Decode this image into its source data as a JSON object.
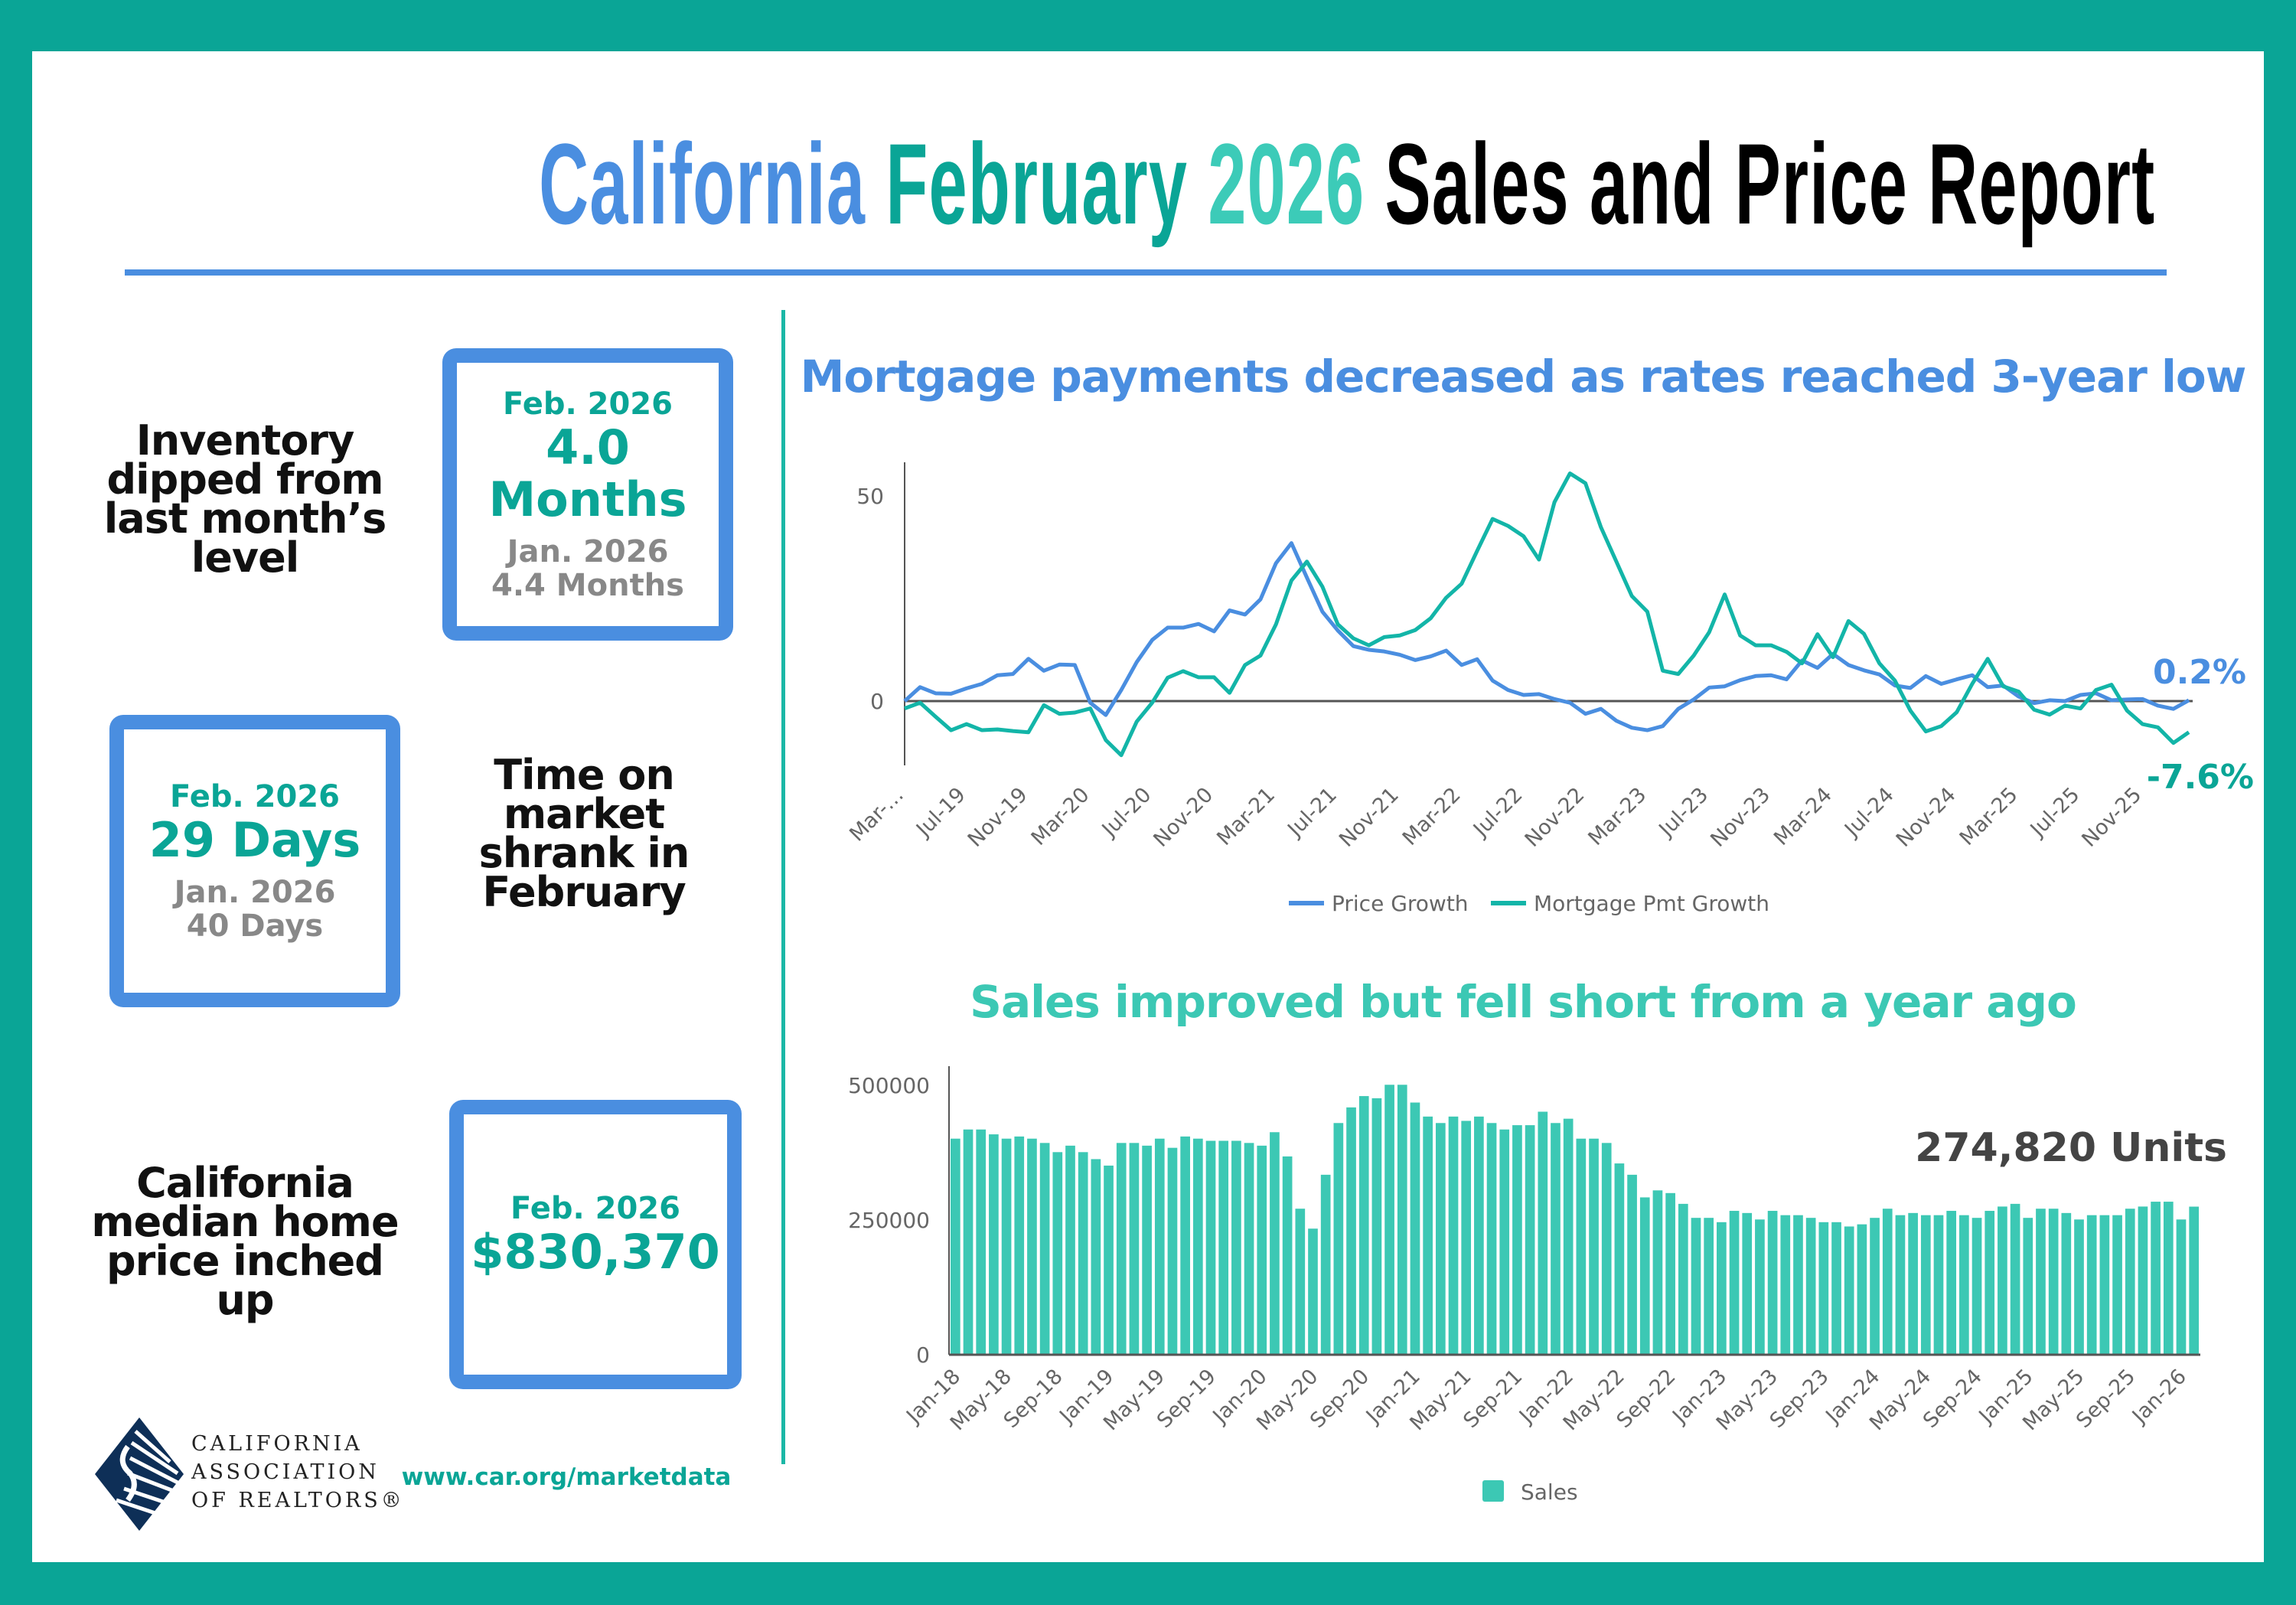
{
  "colors": {
    "frame": "#0aa596",
    "blue": "#4a8ee0",
    "teal": "#0aa596",
    "mortgage_line": "#13b5a8",
    "bars": "#3cc8b4",
    "title_2026": "#3ccbb8"
  },
  "header": {
    "title_part1": "California",
    "title_part2": "February",
    "title_part3": "2026",
    "title_part4": "Sales and Price Report"
  },
  "inventory": {
    "caption": [
      "Inventory",
      "dipped from",
      "last month’s",
      "level"
    ],
    "current_label": "Feb. 2026",
    "current_value": "4.0 Months",
    "prev_label": "Jan. 2026",
    "prev_value": "4.4 Months"
  },
  "days_on_market": {
    "caption": [
      "Time on",
      "market",
      "shrank in",
      "February"
    ],
    "current_label": "Feb. 2026",
    "current_value": "29 Days",
    "prev_label": "Jan. 2026",
    "prev_value": "40 Days"
  },
  "median_price": {
    "caption": [
      "California",
      "median home",
      "price inched",
      "up"
    ],
    "current_label": "Feb. 2026",
    "current_value": "$830,370"
  },
  "footer": {
    "logo_lines": [
      "CALIFORNIA",
      "ASSOCIATION",
      "OF REALTORS®"
    ],
    "url": "www.car.org/marketdata"
  },
  "chart_data": [
    {
      "type": "line",
      "title": "Mortgage payments decreased as rates reached 3-year low",
      "x_tick_labels": [
        "Mar-…",
        "Jul-19",
        "Nov-19",
        "Mar-20",
        "Jul-20",
        "Nov-20",
        "Mar-21",
        "Jul-21",
        "Nov-21",
        "Mar-22",
        "Jul-22",
        "Nov-22",
        "Mar-23",
        "Jul-23",
        "Nov-23",
        "Mar-24",
        "Jul-24",
        "Nov-24",
        "Mar-25",
        "Jul-25",
        "Nov-25"
      ],
      "x_tick_every": 4,
      "y_ticks": [
        0,
        50
      ],
      "ylim": [
        -15,
        58
      ],
      "legend": "bottom",
      "end_labels": [
        "0.2%",
        "-7.6%"
      ],
      "series": [
        {
          "name": "Price Growth",
          "color": "#4a8ee0",
          "values": [
            0,
            3.4,
            1.9,
            1.8,
            3.1,
            4.2,
            6.3,
            6.6,
            10.3,
            7.4,
            8.9,
            8.8,
            -0.4,
            -3.4,
            2.7,
            9.5,
            14.9,
            17.9,
            17.9,
            18.8,
            17.0,
            22.1,
            21.1,
            24.8,
            33.6,
            38.5,
            30.1,
            21.8,
            17.2,
            13.4,
            12.5,
            12.1,
            11.3,
            10.0,
            10.9,
            12.3,
            8.8,
            10.2,
            5.0,
            2.7,
            1.5,
            1.7,
            0.5,
            -0.4,
            -3.1,
            -1.9,
            -4.8,
            -6.5,
            -7.1,
            -6.1,
            -1.9,
            0.4,
            3.3,
            3.6,
            5.1,
            6.1,
            6.3,
            5.3,
            9.9,
            8.1,
            11.5,
            8.8,
            7.5,
            6.5,
            3.8,
            3.2,
            6.1,
            4.2,
            5.3,
            6.3,
            3.4,
            3.8,
            1.1,
            -0.5,
            0.2,
            0,
            1.5,
            1.9,
            0.2,
            0.4,
            0.5,
            -1.1,
            -1.9,
            0.2
          ]
        },
        {
          "name": "Mortgage Pmt Growth",
          "color": "#13b5a8",
          "values": [
            -1.8,
            -0.4,
            -3.8,
            -7.1,
            -5.6,
            -7.1,
            -6.9,
            -7.3,
            -7.6,
            -1.0,
            -3.1,
            -2.8,
            -1.8,
            -9.5,
            -13.2,
            -5.0,
            -0.4,
            5.7,
            7.3,
            5.8,
            5.8,
            2.0,
            8.8,
            11.1,
            18.7,
            29.4,
            34.0,
            27.9,
            18.7,
            15.3,
            13.6,
            15.6,
            16.0,
            17.3,
            20.2,
            25.2,
            28.6,
            36.6,
            44.4,
            42.7,
            40.2,
            34.5,
            48.5,
            55.5,
            53.1,
            42.4,
            34.0,
            25.6,
            21.8,
            7.4,
            6.6,
            11.1,
            16.8,
            26.0,
            16.0,
            13.6,
            13.6,
            12.0,
            9.2,
            16.3,
            10.7,
            19.5,
            16.4,
            9.2,
            5.0,
            -2.3,
            -7.4,
            -6.1,
            -2.7,
            4.2,
            10.3,
            3.6,
            2.3,
            -2.1,
            -3.3,
            -1.1,
            -1.8,
            2.7,
            4.0,
            -2.3,
            -5.6,
            -6.4,
            -10.2,
            -7.6
          ]
        }
      ]
    },
    {
      "type": "bar",
      "title": "Sales improved but fell short from a year ago",
      "x_tick_labels": [
        "Jan-18",
        "May-18",
        "Sep-18",
        "Jan-19",
        "May-19",
        "Sep-19",
        "Jan-20",
        "May-20",
        "Sep-20",
        "Jan-21",
        "May-21",
        "Sep-21",
        "Jan-22",
        "May-22",
        "Sep-22",
        "Jan-23",
        "May-23",
        "Sep-23",
        "Jan-24",
        "May-24",
        "Sep-24",
        "Jan-25",
        "May-25",
        "Sep-25",
        "Jan-26"
      ],
      "x_tick_every": 4,
      "y_ticks": [
        0,
        250000,
        500000
      ],
      "ylim": [
        0,
        540000
      ],
      "legend": "bottom",
      "annotation": "274,820 Units",
      "series": [
        {
          "name": "Sales",
          "color": "#3cc8b4",
          "values": [
            401000,
            418000,
            418000,
            409000,
            401000,
            405000,
            401000,
            393000,
            376000,
            388000,
            376000,
            363000,
            351000,
            393000,
            393000,
            388000,
            401000,
            384000,
            405000,
            401000,
            397000,
            397000,
            397000,
            393000,
            388000,
            413000,
            368000,
            271000,
            234000,
            334000,
            430000,
            459000,
            480000,
            476000,
            501000,
            501000,
            468000,
            442000,
            430000,
            442000,
            434000,
            442000,
            430000,
            418000,
            426000,
            426000,
            451000,
            430000,
            438000,
            401000,
            401000,
            393000,
            355000,
            334000,
            292000,
            305000,
            300000,
            280000,
            254000,
            254000,
            246000,
            267000,
            263000,
            251000,
            267000,
            259000,
            259000,
            254000,
            246000,
            246000,
            238000,
            242000,
            254000,
            271000,
            259000,
            263000,
            259000,
            259000,
            267000,
            259000,
            254000,
            267000,
            275000,
            280000,
            254000,
            271000,
            271000,
            263000,
            251000,
            259000,
            259000,
            259000,
            271000,
            275000,
            284000,
            284000,
            251000,
            274820
          ]
        }
      ]
    }
  ]
}
